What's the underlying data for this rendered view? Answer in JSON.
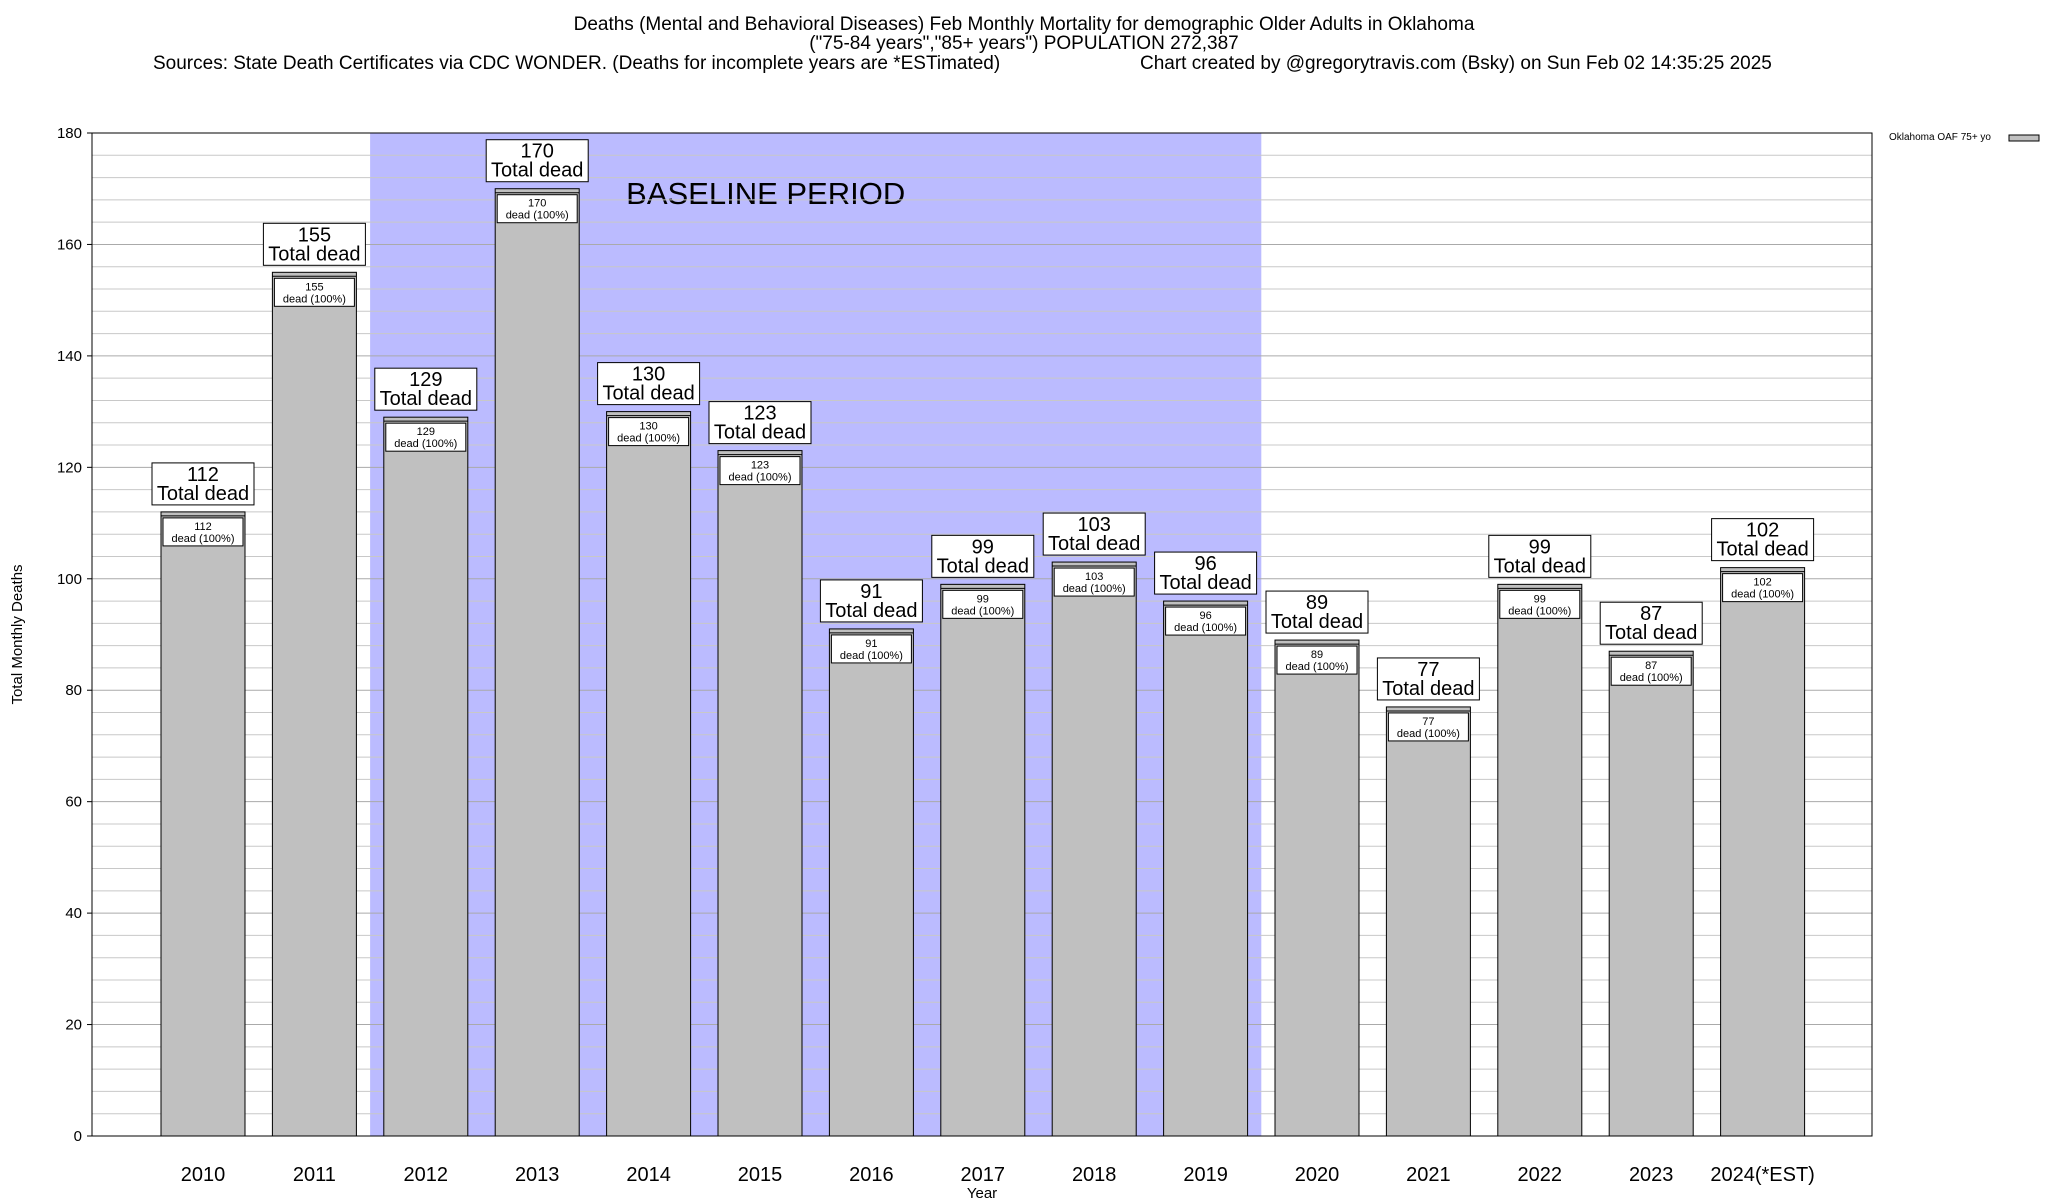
{
  "header": {
    "title": "Deaths (Mental and Behavioral Diseases) Feb Monthly Mortality for demographic Older Adults in Oklahoma",
    "subtitle": "(\"75-84 years\",\"85+ years\") POPULATION 272,387",
    "sources": "Sources: State Death Certificates via CDC WONDER. (Deaths for incomplete years are *ESTimated)",
    "credit": "Chart created by @gregorytravis.com (Bsky) on Sun Feb 02 14:35:25 2025"
  },
  "legend": {
    "label": "Oklahoma OAF 75+ yo",
    "swatch_color": "#c0c0c0"
  },
  "colors": {
    "bar": "#c0c0c0",
    "baseline": "#bbbbff",
    "grid": "#aaaaaa"
  },
  "chart_data": {
    "type": "bar",
    "title": "Deaths (Mental and Behavioral Diseases) Feb Monthly Mortality for demographic Older Adults in Oklahoma",
    "xlabel": "Year",
    "ylabel": "Total Monthly Deaths",
    "ylim": [
      0,
      180
    ],
    "yticks": [
      0,
      20,
      40,
      60,
      80,
      100,
      120,
      140,
      160,
      180
    ],
    "categories": [
      "2010",
      "2011",
      "2012",
      "2013",
      "2014",
      "2015",
      "2016",
      "2017",
      "2018",
      "2019",
      "2020",
      "2021",
      "2022",
      "2023",
      "2024(*EST)"
    ],
    "series": [
      {
        "name": "Oklahoma OAF 75+ yo",
        "values": [
          112,
          155,
          129,
          170,
          130,
          123,
          91,
          99,
          103,
          96,
          89,
          77,
          99,
          87,
          102
        ]
      }
    ],
    "total_label": "Total dead",
    "inner_label": "dead (100%)",
    "baseline_period": {
      "label": "BASELINE PERIOD",
      "from": "2012",
      "to": "2019"
    },
    "grid": true,
    "legend_position": "top-right"
  }
}
